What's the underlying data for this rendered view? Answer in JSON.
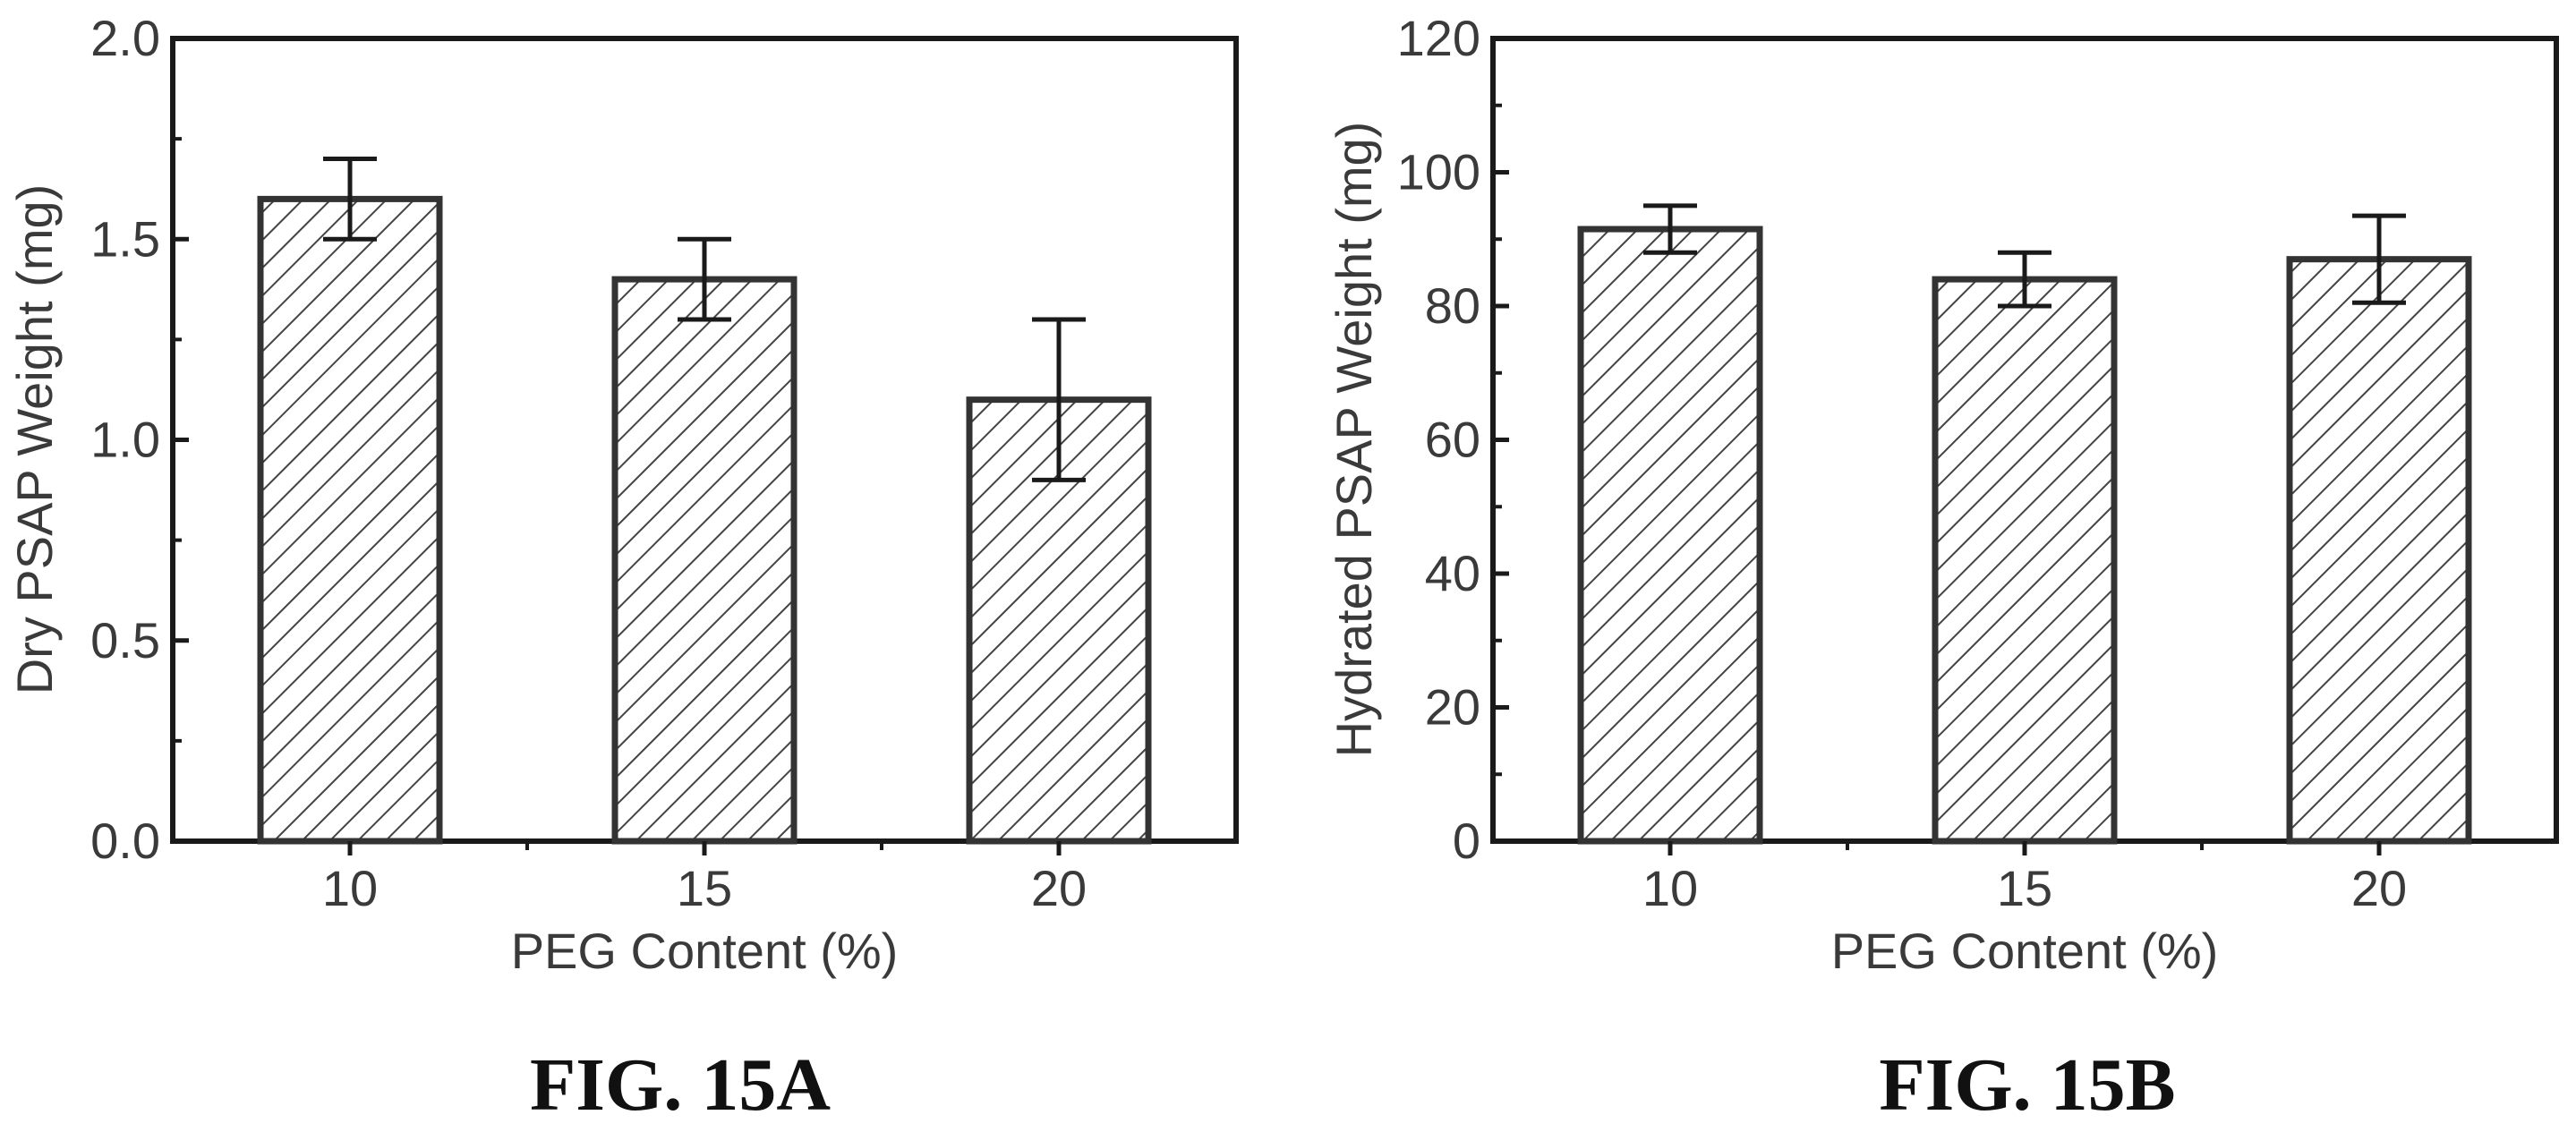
{
  "chart_data": [
    {
      "type": "bar",
      "categories": [
        "10",
        "15",
        "20"
      ],
      "values": [
        1.6,
        1.4,
        1.1
      ],
      "errors": [
        0.1,
        0.1,
        0.2
      ],
      "xlabel": "PEG Content (%)",
      "ylabel": "Dry PSAP Weight (mg)",
      "ylim": [
        0,
        2.0
      ],
      "yticks": [
        0,
        0.5,
        1.0,
        1.5,
        2.0
      ],
      "ytick_labels": [
        "0.0",
        "0.5",
        "1.0",
        "1.5",
        "2.0"
      ],
      "caption": "FIG. 15A",
      "grid": false,
      "bar_fill": "hatched"
    },
    {
      "type": "bar",
      "categories": [
        "10",
        "15",
        "20"
      ],
      "values": [
        91.5,
        84,
        87
      ],
      "errors": [
        3.5,
        4,
        6.5
      ],
      "xlabel": "PEG Content (%)",
      "ylabel": "Hydrated PSAP Weight (mg)",
      "ylim": [
        0,
        120
      ],
      "yticks": [
        0,
        20,
        40,
        60,
        80,
        100,
        120
      ],
      "ytick_labels": [
        "0",
        "20",
        "40",
        "60",
        "80",
        "100",
        "120"
      ],
      "caption": "FIG. 15B",
      "grid": false,
      "bar_fill": "hatched"
    }
  ],
  "colors": {
    "frame": "#1a1a1a",
    "bar_outline": "#333333",
    "hatch": "#444444",
    "text": "#3a3a3a"
  }
}
